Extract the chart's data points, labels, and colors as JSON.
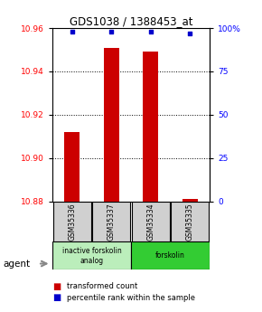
{
  "title": "GDS1038 / 1388453_at",
  "samples": [
    "GSM35336",
    "GSM35337",
    "GSM35334",
    "GSM35335"
  ],
  "bar_values": [
    10.912,
    10.951,
    10.949,
    10.881
  ],
  "percentile_values": [
    98,
    98,
    98,
    97
  ],
  "ymin": 10.88,
  "ymax": 10.96,
  "yticks": [
    10.88,
    10.9,
    10.92,
    10.94,
    10.96
  ],
  "right_yticks": [
    0,
    25,
    50,
    75,
    100
  ],
  "right_ytick_labels": [
    "0",
    "25",
    "50",
    "75",
    "100%"
  ],
  "bar_color": "#cc0000",
  "dot_color": "#0000cc",
  "groups": [
    {
      "label": "inactive forskolin\nanalog",
      "color": "#bbeebb",
      "span": [
        0,
        2
      ]
    },
    {
      "label": "forskolin",
      "color": "#33cc33",
      "span": [
        2,
        4
      ]
    }
  ],
  "agent_label": "agent",
  "legend_red": "transformed count",
  "legend_blue": "percentile rank within the sample",
  "sample_box_color": "#d0d0d0",
  "bar_width": 0.4
}
